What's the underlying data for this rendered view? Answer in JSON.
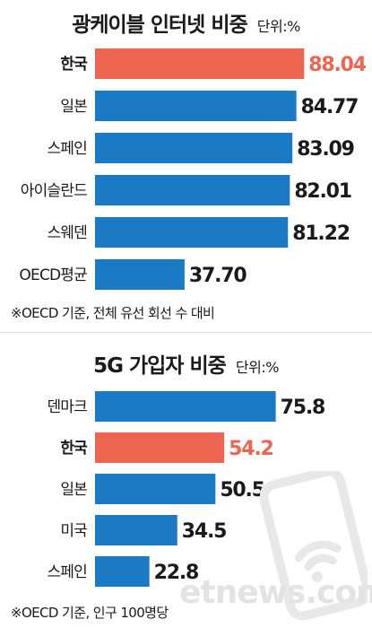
{
  "colors": {
    "highlight": "#ed6551",
    "bar": "#1b7ac5",
    "text": "#1a1a1a",
    "value_highlight": "#ed6551"
  },
  "charts": {
    "broadband": {
      "title": "광케이블 인터넷 비중",
      "unit": "단위:%",
      "note": "※OECD 기준, 전체 유선 회선 수 대비"
    },
    "fiveg": {
      "title": "5G 가입자 비중",
      "unit": "단위:%",
      "note": "※OECD 기준, 인구 100명당"
    }
  },
  "brand": {
    "logo": "etnews.com"
  },
  "chart_data": [
    {
      "type": "bar",
      "orientation": "horizontal",
      "title": "광케이블 인터넷 비중",
      "unit": "단위:%",
      "categories": [
        "한국",
        "일본",
        "스페인",
        "아이슬란드",
        "스웨덴",
        "OECD평균"
      ],
      "values": [
        88.04,
        84.77,
        83.09,
        82.01,
        81.22,
        37.7
      ],
      "labels": [
        "88.04",
        "84.77",
        "83.09",
        "82.01",
        "81.22",
        "37.70"
      ],
      "highlight": "한국"
    },
    {
      "type": "bar",
      "orientation": "horizontal",
      "title": "5G 가입자 비중",
      "unit": "단위:%",
      "categories": [
        "덴마크",
        "한국",
        "일본",
        "미국",
        "스페인"
      ],
      "values": [
        75.8,
        54.2,
        50.5,
        34.5,
        22.8
      ],
      "labels": [
        "75.8",
        "54.2",
        "50.5",
        "34.5",
        "22.8"
      ],
      "highlight": "한국"
    }
  ]
}
